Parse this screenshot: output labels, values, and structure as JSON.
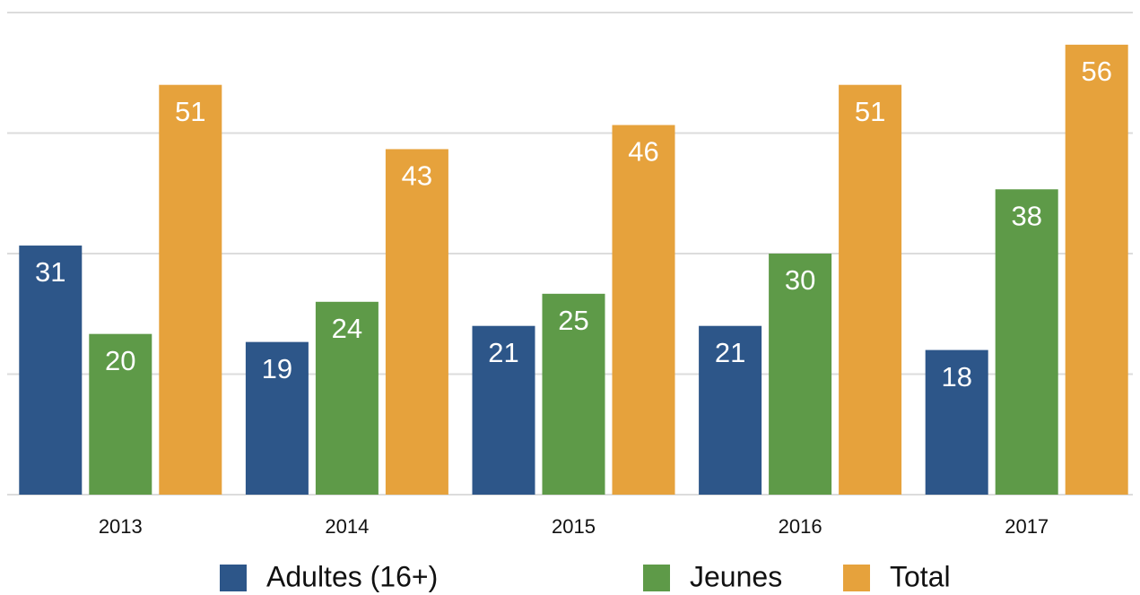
{
  "chart_data": {
    "type": "bar",
    "categories": [
      "2013",
      "2014",
      "2015",
      "2016",
      "2017"
    ],
    "series": [
      {
        "name": "Adultes (16+)",
        "color": "#2d5689",
        "values": [
          31,
          19,
          21,
          21,
          18
        ]
      },
      {
        "name": "Jeunes",
        "color": "#5e9a48",
        "values": [
          20,
          24,
          25,
          30,
          38
        ]
      },
      {
        "name": "Total",
        "color": "#e6a23c",
        "values": [
          51,
          43,
          46,
          51,
          56
        ]
      }
    ],
    "ylim": [
      0,
      60
    ],
    "yticks": [
      0,
      15,
      30,
      45,
      60
    ],
    "grid": true
  }
}
